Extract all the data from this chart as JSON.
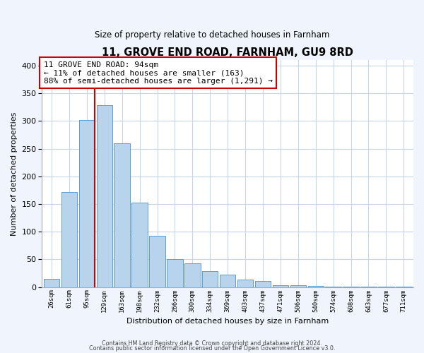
{
  "title": "11, GROVE END ROAD, FARNHAM, GU9 8RD",
  "subtitle": "Size of property relative to detached houses in Farnham",
  "xlabel": "Distribution of detached houses by size in Farnham",
  "ylabel": "Number of detached properties",
  "bar_labels": [
    "26sqm",
    "61sqm",
    "95sqm",
    "129sqm",
    "163sqm",
    "198sqm",
    "232sqm",
    "266sqm",
    "300sqm",
    "334sqm",
    "369sqm",
    "403sqm",
    "437sqm",
    "471sqm",
    "506sqm",
    "540sqm",
    "574sqm",
    "608sqm",
    "643sqm",
    "677sqm",
    "711sqm"
  ],
  "bar_heights": [
    15,
    172,
    302,
    329,
    259,
    153,
    92,
    50,
    43,
    29,
    23,
    13,
    11,
    4,
    4,
    2,
    1,
    1,
    1,
    1,
    1
  ],
  "bar_color": "#b8d4ec",
  "bar_edge_color": "#5a9fd4",
  "vline_color": "#cc0000",
  "annotation_text": "11 GROVE END ROAD: 94sqm\n← 11% of detached houses are smaller (163)\n88% of semi-detached houses are larger (1,291) →",
  "annotation_box_color": "#ffffff",
  "annotation_box_edge": "#cc0000",
  "ylim": [
    0,
    410
  ],
  "yticks": [
    0,
    50,
    100,
    150,
    200,
    250,
    300,
    350,
    400
  ],
  "footer_line1": "Contains HM Land Registry data © Crown copyright and database right 2024.",
  "footer_line2": "Contains public sector information licensed under the Open Government Licence v3.0.",
  "bg_color": "#f0f4fc",
  "plot_bg_color": "#ffffff",
  "grid_color": "#c8d4e8"
}
